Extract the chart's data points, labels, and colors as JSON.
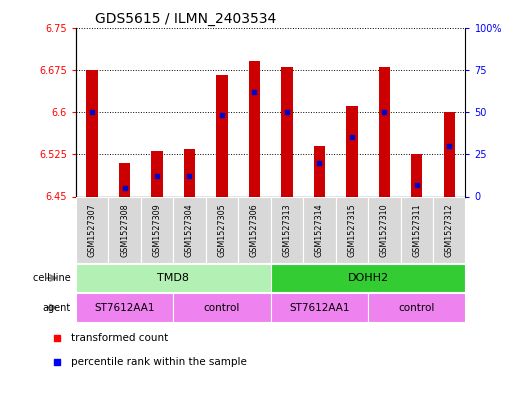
{
  "title": "GDS5615 / ILMN_2403534",
  "samples": [
    "GSM1527307",
    "GSM1527308",
    "GSM1527309",
    "GSM1527304",
    "GSM1527305",
    "GSM1527306",
    "GSM1527313",
    "GSM1527314",
    "GSM1527315",
    "GSM1527310",
    "GSM1527311",
    "GSM1527312"
  ],
  "transformed_counts": [
    6.675,
    6.51,
    6.53,
    6.535,
    6.665,
    6.69,
    6.68,
    6.54,
    6.61,
    6.68,
    6.525,
    6.6
  ],
  "percentile_ranks": [
    50,
    5,
    12,
    12,
    48,
    62,
    50,
    20,
    35,
    50,
    7,
    30
  ],
  "y_min": 6.45,
  "y_max": 6.75,
  "y_ticks_left": [
    6.45,
    6.525,
    6.6,
    6.675,
    6.75
  ],
  "y_ticks_right_vals": [
    0,
    25,
    50,
    75,
    100
  ],
  "bar_color": "#cc0000",
  "dot_color": "#0000cc",
  "cell_line_groups": [
    {
      "label": "TMD8",
      "start": 0,
      "end": 6,
      "color": "#b3f0b3"
    },
    {
      "label": "DOHH2",
      "start": 6,
      "end": 12,
      "color": "#33cc33"
    }
  ],
  "agent_groups": [
    {
      "label": "ST7612AA1",
      "start": 0,
      "end": 3,
      "color": "#ee82ee"
    },
    {
      "label": "control",
      "start": 3,
      "end": 6,
      "color": "#ee82ee"
    },
    {
      "label": "ST7612AA1",
      "start": 6,
      "end": 9,
      "color": "#ee82ee"
    },
    {
      "label": "control",
      "start": 9,
      "end": 12,
      "color": "#ee82ee"
    }
  ],
  "title_fontsize": 10,
  "bar_width": 0.35
}
